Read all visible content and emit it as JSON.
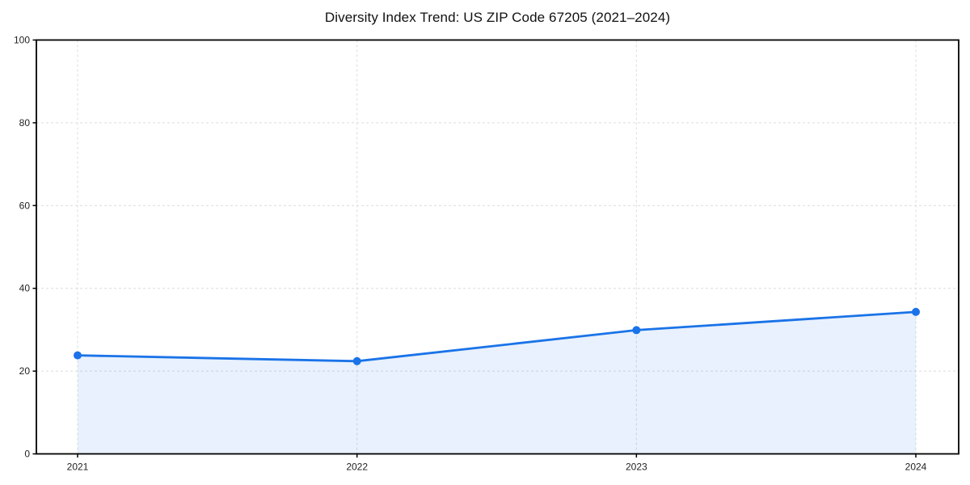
{
  "page": {
    "background": "#ffffff"
  },
  "chart_data": {
    "type": "line",
    "title": "Diversity Index Trend: US ZIP Code 67205 (2021–2024)",
    "x": [
      "2021",
      "2022",
      "2023",
      "2024"
    ],
    "series": [
      {
        "name": "Diversity Index",
        "values": [
          23.8,
          22.4,
          29.9,
          34.3
        ]
      }
    ],
    "xlabel": "",
    "ylabel": "",
    "ylim": [
      0,
      100
    ],
    "yticks": [
      0,
      20,
      40,
      60,
      80,
      100
    ],
    "grid": "dashed-both-axes",
    "legend": "none",
    "markers": "circle",
    "area_fill": true,
    "colors": {
      "line": "#1a73e8",
      "marker": "#1a73e8",
      "area": "rgba(26,115,232,0.10)",
      "grid": "#dcdcdc",
      "spine": "#000000",
      "tick_label": "#1f1f1f",
      "title": "#111111"
    }
  }
}
